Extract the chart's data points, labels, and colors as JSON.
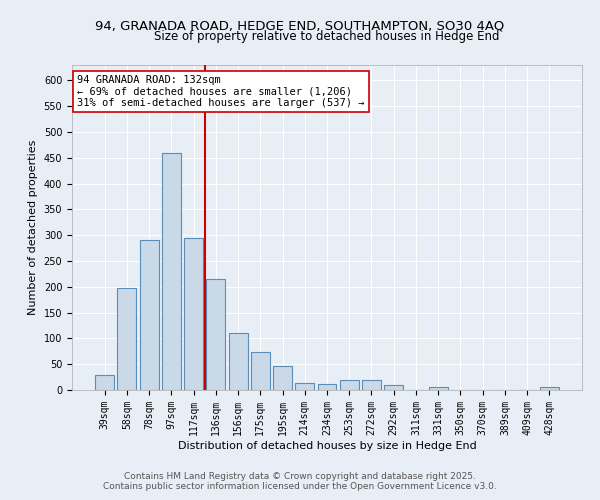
{
  "title_line1": "94, GRANADA ROAD, HEDGE END, SOUTHAMPTON, SO30 4AQ",
  "title_line2": "Size of property relative to detached houses in Hedge End",
  "xlabel": "Distribution of detached houses by size in Hedge End",
  "ylabel": "Number of detached properties",
  "bar_labels": [
    "39sqm",
    "58sqm",
    "78sqm",
    "97sqm",
    "117sqm",
    "136sqm",
    "156sqm",
    "175sqm",
    "195sqm",
    "214sqm",
    "234sqm",
    "253sqm",
    "272sqm",
    "292sqm",
    "311sqm",
    "331sqm",
    "350sqm",
    "370sqm",
    "389sqm",
    "409sqm",
    "428sqm"
  ],
  "bar_heights": [
    30,
    198,
    290,
    460,
    295,
    215,
    110,
    74,
    47,
    13,
    12,
    20,
    20,
    10,
    0,
    5,
    0,
    0,
    0,
    0,
    5
  ],
  "bar_color": "#c9d9e8",
  "bar_edge_color": "#5b8db8",
  "vline_index": 5,
  "vline_color": "#cc0000",
  "annotation_text": "94 GRANADA ROAD: 132sqm\n← 69% of detached houses are smaller (1,206)\n31% of semi-detached houses are larger (537) →",
  "annotation_box_color": "#ffffff",
  "annotation_box_edge_color": "#cc0000",
  "ylim": [
    0,
    630
  ],
  "yticks": [
    0,
    50,
    100,
    150,
    200,
    250,
    300,
    350,
    400,
    450,
    500,
    550,
    600
  ],
  "background_color": "#e8eef5",
  "plot_background_color": "#e8eef5",
  "footer_line1": "Contains HM Land Registry data © Crown copyright and database right 2025.",
  "footer_line2": "Contains public sector information licensed under the Open Government Licence v3.0.",
  "title_fontsize": 9.5,
  "subtitle_fontsize": 8.5,
  "tick_fontsize": 7,
  "ylabel_fontsize": 8,
  "xlabel_fontsize": 8,
  "annotation_fontsize": 7.5,
  "footer_fontsize": 6.5
}
